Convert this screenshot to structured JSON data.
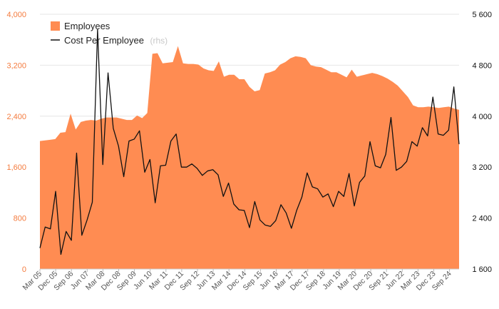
{
  "chart_data": {
    "type": "area",
    "colors": {
      "area": "#ff8c52",
      "line": "#111111",
      "grid": "#e6e6e6",
      "left_axis_text": "#f47b3e",
      "right_axis_text": "#111111"
    },
    "legend": {
      "placement": "top-left",
      "items": [
        {
          "label": "Employees",
          "note": "",
          "symbol": "area"
        },
        {
          "label": "Cost Per Employee",
          "note": "(rhs)",
          "symbol": "line"
        }
      ]
    },
    "y_left": {
      "min": 0,
      "max": 4000,
      "ticks": [
        "0",
        "800",
        "1,600",
        "2,400",
        "3,200",
        "4,000"
      ],
      "values": [
        0,
        800,
        1600,
        2400,
        3200,
        4000
      ]
    },
    "y_right": {
      "min": 1600,
      "max": 5600,
      "ticks": [
        "1 600",
        "2 400",
        "3 200",
        "4 000",
        "4 800",
        "5 600"
      ],
      "values": [
        1600,
        2400,
        3200,
        4000,
        4800,
        5600
      ]
    },
    "x_labels": [
      "Mar 05",
      "Dec 05",
      "Sep 06",
      "Jun 07",
      "Mar 08",
      "Dec 08",
      "Sep 09",
      "Jun 10",
      "Mar 11",
      "Dec 11",
      "Sep 12",
      "Jun 13",
      "Mar 14",
      "Dec 14",
      "Sep 15",
      "Jun 16",
      "Mar 17",
      "Dec 17",
      "Sep 18",
      "Jun 19",
      "Mar 20",
      "Dec 20",
      "Sep 21",
      "Jun 22",
      "Mar 23",
      "Dec 23",
      "Sep 24"
    ],
    "grid": true,
    "series": [
      {
        "name": "Employees",
        "axis": "left",
        "values": [
          2010,
          2020,
          2030,
          2040,
          2140,
          2150,
          2440,
          2190,
          2310,
          2330,
          2340,
          2330,
          2360,
          2380,
          2380,
          2380,
          2360,
          2340,
          2340,
          2410,
          2370,
          2450,
          3380,
          3390,
          3230,
          3240,
          3250,
          3500,
          3230,
          3220,
          3220,
          3210,
          3150,
          3120,
          3110,
          3260,
          3020,
          3050,
          3050,
          2980,
          2980,
          2860,
          2790,
          2810,
          3070,
          3090,
          3120,
          3210,
          3250,
          3310,
          3340,
          3330,
          3310,
          3200,
          3180,
          3170,
          3130,
          3090,
          3090,
          3050,
          3010,
          3130,
          3020,
          3040,
          3060,
          3080,
          3060,
          3030,
          2990,
          2940,
          2880,
          2790,
          2700,
          2570,
          2540,
          2540,
          2550,
          2540,
          2530,
          2540,
          2550,
          2520,
          2500
        ]
      },
      {
        "name": "Cost Per Employee",
        "axis": "right",
        "values": [
          1930,
          2260,
          2230,
          2820,
          1830,
          2190,
          2050,
          3420,
          2130,
          2370,
          2650,
          5360,
          3240,
          4680,
          3810,
          3530,
          3050,
          3610,
          3640,
          3770,
          3120,
          3320,
          2640,
          3220,
          3230,
          3610,
          3720,
          3200,
          3200,
          3250,
          3180,
          3070,
          3140,
          3160,
          3080,
          2740,
          2950,
          2620,
          2530,
          2520,
          2250,
          2660,
          2370,
          2290,
          2270,
          2360,
          2610,
          2480,
          2240,
          2520,
          2730,
          3110,
          2890,
          2860,
          2730,
          2780,
          2580,
          2820,
          2740,
          3100,
          2590,
          2960,
          3060,
          3600,
          3220,
          3190,
          3400,
          3980,
          3150,
          3200,
          3290,
          3600,
          3530,
          3820,
          3690,
          4300,
          3720,
          3700,
          3780,
          4460,
          3560
        ]
      }
    ]
  }
}
